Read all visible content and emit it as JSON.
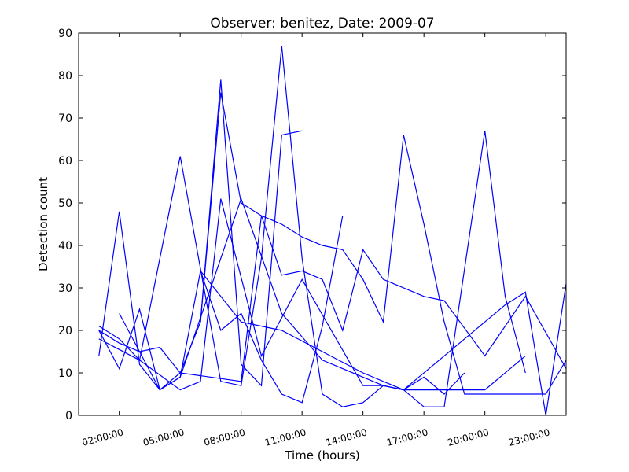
{
  "chart_data": {
    "type": "line",
    "title": "Observer: benitez, Date: 2009-07",
    "xlabel": "Time (hours)",
    "ylabel": "Detection count",
    "xlim": [
      0.0,
      24.0
    ],
    "ylim": [
      0,
      90
    ],
    "x_ticks": [
      {
        "value": 2,
        "label": "02:00:00"
      },
      {
        "value": 5,
        "label": "05:00:00"
      },
      {
        "value": 8,
        "label": "08:00:00"
      },
      {
        "value": 11,
        "label": "11:00:00"
      },
      {
        "value": 14,
        "label": "14:00:00"
      },
      {
        "value": 17,
        "label": "17:00:00"
      },
      {
        "value": 20,
        "label": "20:00:00"
      },
      {
        "value": 23,
        "label": "23:00:00"
      }
    ],
    "y_ticks": [
      0,
      10,
      20,
      30,
      40,
      50,
      60,
      70,
      80,
      90
    ],
    "line_color": "#0000ff",
    "grid": false,
    "series": [
      {
        "x": [
          1.0,
          2.0,
          3.0,
          5.0,
          7.0,
          8.0,
          9.0,
          10.0,
          11.0,
          12.0,
          13.0,
          14.0,
          15.0,
          16.0,
          17.0,
          18.0,
          20.0,
          21.0,
          22.0
        ],
        "y": [
          21,
          18,
          13,
          61,
          8,
          7,
          37,
          87,
          37,
          5,
          2,
          3,
          7,
          6,
          2,
          2,
          67,
          28,
          10
        ]
      },
      {
        "x": [
          1.0,
          2.0,
          3.0,
          4.0,
          5.0,
          6.0,
          7.0,
          8.0,
          9.0,
          10.0,
          11.0,
          12.0,
          13.0
        ],
        "y": [
          14,
          48,
          12,
          6,
          9,
          34,
          20,
          24,
          13,
          5,
          3,
          21,
          47
        ]
      },
      {
        "x": [
          1.0,
          2.0,
          3.0,
          4.0,
          5.0,
          6.0,
          7.0,
          8.0,
          9.0,
          10.0,
          11.0
        ],
        "y": [
          20,
          11,
          25,
          6,
          10,
          22,
          79,
          12,
          7,
          66,
          67
        ]
      },
      {
        "x": [
          2.0,
          4.0,
          5.0,
          8.0,
          10.0,
          12.0,
          13.0,
          14.0,
          15.0,
          16.0,
          18.0,
          20.0,
          22.0
        ],
        "y": [
          24,
          6,
          9,
          51,
          24,
          13,
          11,
          9,
          7,
          6,
          6,
          6,
          14
        ]
      },
      {
        "x": [
          1.0,
          3.0,
          5.0,
          6.0,
          7.0,
          9.0,
          11.0,
          14.0,
          15.0,
          16.0,
          17.0,
          18.0,
          19.0
        ],
        "y": [
          18,
          13,
          6,
          8,
          51,
          14,
          32,
          7,
          7,
          6,
          9,
          5,
          10
        ]
      },
      {
        "x": [
          1.0,
          2.0,
          3.0,
          4.0,
          5.0,
          8.0,
          9.0,
          10.0,
          11.0,
          12.0,
          13.0,
          14.0,
          15.0,
          17.0,
          18.0,
          20.0,
          22.0,
          24.0
        ],
        "y": [
          20,
          17,
          15,
          16,
          10,
          8,
          47,
          33,
          34,
          32,
          20,
          39,
          32,
          28,
          27,
          14,
          28,
          11
        ]
      },
      {
        "x": [
          6.0,
          7.0,
          8.0,
          9.0,
          10.0,
          11.0,
          12.0,
          13.0,
          14.0,
          15.0,
          16.0,
          17.0,
          18.0,
          19.0,
          20.0,
          21.0,
          22.0,
          23.0,
          24.0
        ],
        "y": [
          22,
          76,
          50,
          47,
          45,
          42,
          40,
          39,
          32,
          22,
          66,
          45,
          22,
          5,
          5,
          5,
          5,
          5,
          13
        ]
      },
      {
        "x": [
          6.0,
          8.0,
          10.0,
          12.0,
          14.0,
          16.0,
          18.0,
          20.0,
          21.0,
          22.0,
          23.0,
          24.0
        ],
        "y": [
          34,
          22,
          20,
          15,
          10,
          6,
          14,
          22,
          26,
          29,
          0,
          31
        ]
      }
    ]
  }
}
